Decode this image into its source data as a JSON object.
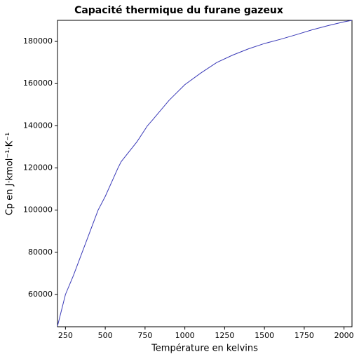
{
  "chart_data": {
    "type": "line",
    "title": "Capacité thermique du furane gazeux",
    "x_label": "Température en kelvins",
    "y_label": "Cp en J·kmol⁻¹·K⁻¹",
    "x": [
      200,
      250,
      300,
      400,
      455,
      500,
      580,
      600,
      700,
      765,
      800,
      900,
      1000,
      1100,
      1200,
      1300,
      1400,
      1500,
      1600,
      1700,
      1800,
      1900,
      2000,
      2050
    ],
    "series": [
      {
        "name": "Cp",
        "color": "#3a3ab8",
        "values": [
          45000,
          60000,
          69000,
          89000,
          100000,
          106500,
          120000,
          123000,
          132500,
          140000,
          143000,
          152000,
          159500,
          165000,
          170000,
          173500,
          176500,
          179000,
          181000,
          183200,
          185500,
          187500,
          189300,
          190000
        ]
      }
    ],
    "xlim": [
      200,
      2050
    ],
    "ylim": [
      44700,
      190000
    ],
    "xticks": [
      250,
      500,
      750,
      1000,
      1250,
      1500,
      1750,
      2000
    ],
    "yticks": [
      60000,
      80000,
      100000,
      120000,
      140000,
      160000,
      180000
    ]
  }
}
